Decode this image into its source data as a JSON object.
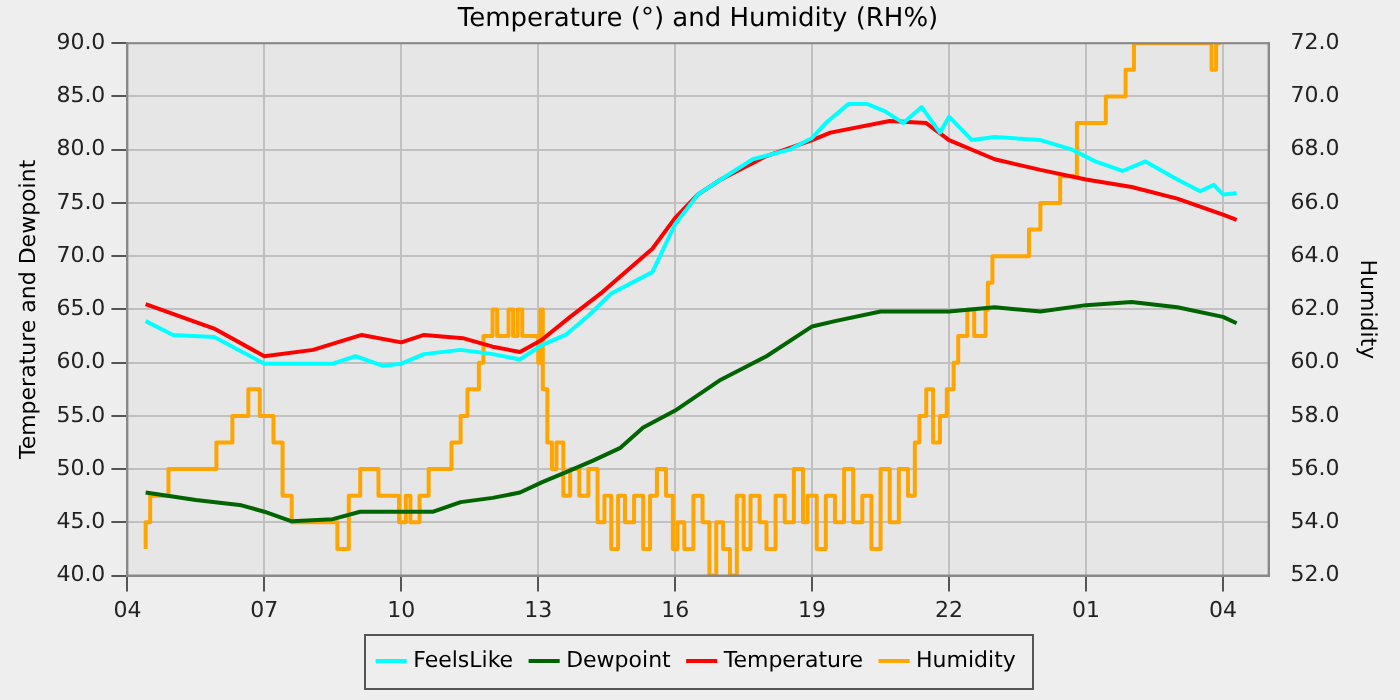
{
  "chart_data": {
    "type": "line",
    "title": "Temperature (°) and Humidity (RH%)",
    "ylabel": "Temperature and Dewpoint",
    "y2label": "Humidity",
    "xlim": [
      "--01-01T04:00",
      "--01-02T05:00"
    ],
    "xticks": [
      {
        "value": "--01-01T04:00",
        "label": "04"
      },
      {
        "value": "--01-01T07:00",
        "label": "07"
      },
      {
        "value": "--01-01T10:00",
        "label": "10"
      },
      {
        "value": "--01-01T13:00",
        "label": "13"
      },
      {
        "value": "--01-01T16:00",
        "label": "16"
      },
      {
        "value": "--01-01T19:00",
        "label": "19"
      },
      {
        "value": "--01-01T22:00",
        "label": "22"
      },
      {
        "value": "--01-02T01:00",
        "label": "01"
      },
      {
        "value": "--01-02T04:00",
        "label": "04"
      }
    ],
    "ylim": [
      40,
      90
    ],
    "yticks": [
      {
        "value": 40,
        "label": "40.0"
      },
      {
        "value": 45,
        "label": "45.0"
      },
      {
        "value": 50,
        "label": "50.0"
      },
      {
        "value": 55,
        "label": "55.0"
      },
      {
        "value": 60,
        "label": "60.0"
      },
      {
        "value": 65,
        "label": "65.0"
      },
      {
        "value": 70,
        "label": "70.0"
      },
      {
        "value": 75,
        "label": "75.0"
      },
      {
        "value": 80,
        "label": "80.0"
      },
      {
        "value": 85,
        "label": "85.0"
      },
      {
        "value": 90,
        "label": "90.0"
      }
    ],
    "y2lim": [
      52,
      72
    ],
    "y2ticks": [
      {
        "value": 52,
        "label": "52.0"
      },
      {
        "value": 54,
        "label": "54.0"
      },
      {
        "value": 56,
        "label": "56.0"
      },
      {
        "value": 58,
        "label": "58.0"
      },
      {
        "value": 60,
        "label": "60.0"
      },
      {
        "value": 62,
        "label": "62.0"
      },
      {
        "value": 64,
        "label": "64.0"
      },
      {
        "value": 66,
        "label": "66.0"
      },
      {
        "value": 68,
        "label": "68.0"
      },
      {
        "value": 70,
        "label": "70.0"
      },
      {
        "value": 72,
        "label": "72.0"
      }
    ],
    "grid": true,
    "legend": "bottom",
    "marker": "none",
    "line_style": "solid",
    "series": [
      {
        "name": "FeelsLike",
        "color": "#00ffff",
        "x": [
          "--01-01T04:24",
          "--01-01T05:00",
          "--01-01T05:54",
          "--01-01T07:00",
          "--01-01T07:30",
          "--01-01T08:30",
          "--01-01T09:00",
          "--01-01T09:36",
          "--01-01T10:00",
          "--01-01T10:30",
          "--01-01T11:18",
          "--01-01T12:00",
          "--01-01T12:36",
          "--01-01T13:06",
          "--01-01T13:36",
          "--01-01T14:06",
          "--01-01T14:36",
          "--01-01T15:30",
          "--01-01T16:00",
          "--01-01T16:30",
          "--01-01T17:00",
          "--01-01T17:42",
          "--01-01T18:30",
          "--01-01T19:00",
          "--01-01T19:18",
          "--01-01T19:48",
          "--01-01T20:12",
          "--01-01T20:36",
          "--01-01T21:00",
          "--01-01T21:24",
          "--01-01T21:48",
          "--01-01T22:00",
          "--01-01T22:30",
          "--01-01T23:00",
          "--01-02T00:00",
          "--01-02T00:42",
          "--01-02T01:12",
          "--01-02T01:48",
          "--01-02T02:18",
          "--01-02T03:00",
          "--01-02T03:30",
          "--01-02T03:48",
          "--01-02T04:00",
          "--01-02T04:18"
        ],
        "values": [
          63.9,
          62.6,
          62.4,
          59.9,
          59.9,
          59.9,
          60.6,
          59.7,
          59.9,
          60.8,
          61.2,
          60.8,
          60.3,
          61.7,
          62.6,
          64.4,
          66.5,
          68.5,
          73,
          75.8,
          77.2,
          79.1,
          80,
          81.1,
          82.5,
          84.3,
          84.3,
          83.6,
          82.5,
          84,
          81.6,
          83.1,
          80.9,
          81.2,
          80.9,
          80,
          78.9,
          78,
          78.9,
          77.2,
          76.1,
          76.7,
          75.8,
          75.9
        ]
      },
      {
        "name": "Dewpoint",
        "color": "#006400",
        "x": [
          "--01-01T04:24",
          "--01-01T05:30",
          "--01-01T06:30",
          "--01-01T07:00",
          "--01-01T07:36",
          "--01-01T08:30",
          "--01-01T09:06",
          "--01-01T10:00",
          "--01-01T10:42",
          "--01-01T11:18",
          "--01-01T12:00",
          "--01-01T12:36",
          "--01-01T13:06",
          "--01-01T13:36",
          "--01-01T14:12",
          "--01-01T14:48",
          "--01-01T15:18",
          "--01-01T16:00",
          "--01-01T17:00",
          "--01-01T18:00",
          "--01-01T19:00",
          "--01-01T19:30",
          "--01-01T20:30",
          "--01-01T22:00",
          "--01-01T23:00",
          "--01-02T00:00",
          "--01-02T01:00",
          "--01-02T02:00",
          "--01-02T03:00",
          "--01-02T04:00",
          "--01-02T04:18"
        ],
        "values": [
          47.8,
          47.1,
          46.6,
          46,
          45.1,
          45.3,
          46,
          46,
          46,
          46.9,
          47.3,
          47.8,
          48.8,
          49.7,
          50.8,
          52,
          53.9,
          55.5,
          58.4,
          60.6,
          63.4,
          63.9,
          64.8,
          64.8,
          65.2,
          64.8,
          65.4,
          65.7,
          65.2,
          64.3,
          63.7
        ]
      },
      {
        "name": "Temperature",
        "color": "#ff0000",
        "x": [
          "--01-01T04:24",
          "--01-01T05:54",
          "--01-01T07:00",
          "--01-01T08:04",
          "--01-01T09:08",
          "--01-01T10:00",
          "--01-01T10:30",
          "--01-01T11:21",
          "--01-01T12:00",
          "--01-01T12:36",
          "--01-01T13:04",
          "--01-01T13:42",
          "--01-01T14:24",
          "--01-01T15:30",
          "--01-01T16:00",
          "--01-01T16:30",
          "--01-01T17:00",
          "--01-01T18:00",
          "--01-01T19:00",
          "--01-01T19:24",
          "--01-01T20:42",
          "--01-01T21:30",
          "--01-01T22:00",
          "--01-01T23:00",
          "--01-02T00:00",
          "--01-02T01:00",
          "--01-02T02:00",
          "--01-02T03:00",
          "--01-02T04:00",
          "--01-02T04:18"
        ],
        "values": [
          65.5,
          63.2,
          60.6,
          61.2,
          62.6,
          61.9,
          62.6,
          62.3,
          61.5,
          61,
          62.1,
          64.3,
          66.6,
          70.7,
          73.6,
          75.8,
          77.2,
          79.4,
          80.9,
          81.6,
          82.7,
          82.5,
          80.9,
          79.1,
          78.1,
          77.2,
          76.5,
          75.4,
          73.9,
          73.4
        ]
      },
      {
        "name": "Humidity",
        "color": "#ffa500",
        "type": "step",
        "axis": "y2",
        "x": [
          "--01-01T04:24",
          "--01-01T04:30",
          "--01-01T04:54",
          "--01-01T05:57",
          "--01-01T06:18",
          "--01-01T06:39",
          "--01-01T06:54",
          "--01-01T07:12",
          "--01-01T07:24",
          "--01-01T07:36",
          "--01-01T08:36",
          "--01-01T08:51",
          "--01-01T09:06",
          "--01-01T09:30",
          "--01-01T09:57",
          "--01-01T10:06",
          "--01-01T10:12",
          "--01-01T10:24",
          "--01-01T10:36",
          "--01-01T11:06",
          "--01-01T11:18",
          "--01-01T11:27",
          "--01-01T11:42",
          "--01-01T11:48",
          "--01-01T12:00",
          "--01-01T12:06",
          "--01-01T12:21",
          "--01-01T12:27",
          "--01-01T12:33",
          "--01-01T12:39",
          "--01-01T13:00",
          "--01-01T13:03",
          "--01-01T13:06",
          "--01-01T13:12",
          "--01-01T13:18",
          "--01-01T13:24",
          "--01-01T13:33",
          "--01-01T13:42",
          "--01-01T13:54",
          "--01-01T14:06",
          "--01-01T14:18",
          "--01-01T14:27",
          "--01-01T14:36",
          "--01-01T14:45",
          "--01-01T14:54",
          "--01-01T15:06",
          "--01-01T15:18",
          "--01-01T15:27",
          "--01-01T15:36",
          "--01-01T15:48",
          "--01-01T15:57",
          "--01-01T16:03",
          "--01-01T16:12",
          "--01-01T16:24",
          "--01-01T16:36",
          "--01-01T16:45",
          "--01-01T16:54",
          "--01-01T17:03",
          "--01-01T17:12",
          "--01-01T17:21",
          "--01-01T17:30",
          "--01-01T17:39",
          "--01-01T17:51",
          "--01-01T18:00",
          "--01-01T18:12",
          "--01-01T18:24",
          "--01-01T18:36",
          "--01-01T18:48",
          "--01-01T18:54",
          "--01-01T19:06",
          "--01-01T19:18",
          "--01-01T19:30",
          "--01-01T19:42",
          "--01-01T19:54",
          "--01-01T20:06",
          "--01-01T20:18",
          "--01-01T20:30",
          "--01-01T20:42",
          "--01-01T20:54",
          "--01-01T21:06",
          "--01-01T21:15",
          "--01-01T21:21",
          "--01-01T21:30",
          "--01-01T21:39",
          "--01-01T21:48",
          "--01-01T21:57",
          "--01-01T22:06",
          "--01-01T22:12",
          "--01-01T22:24",
          "--01-01T22:33",
          "--01-01T22:48",
          "--01-01T22:51",
          "--01-01T22:57",
          "--01-01T23:45",
          "--01-02T00:00",
          "--01-02T00:26",
          "--01-02T00:48",
          "--01-02T01:26",
          "--01-02T01:52",
          "--01-02T02:03",
          "--01-02T03:45",
          "--01-02T03:51",
          "--01-02T03:57"
        ],
        "values": [
          53,
          54,
          55,
          56,
          57,
          58,
          59,
          58,
          57,
          55,
          54,
          53,
          55,
          56,
          55,
          54,
          55,
          54,
          55,
          56,
          57,
          58,
          59,
          60,
          61,
          62,
          61,
          62,
          61,
          62,
          61,
          60,
          62,
          59,
          57,
          56,
          57,
          55,
          56,
          55,
          56,
          54,
          55,
          53,
          55,
          54,
          55,
          53,
          55,
          56,
          55,
          53,
          54,
          53,
          55,
          54,
          52,
          54,
          53,
          52,
          55,
          53,
          55,
          54,
          53,
          55,
          54,
          56,
          54,
          55,
          53,
          55,
          54,
          56,
          54,
          55,
          53,
          56,
          54,
          56,
          55,
          57,
          58,
          59,
          57,
          58,
          59,
          60,
          61,
          62,
          61,
          62,
          63,
          64,
          65,
          66,
          67,
          69,
          70,
          71,
          72,
          71,
          72
        ]
      }
    ]
  }
}
